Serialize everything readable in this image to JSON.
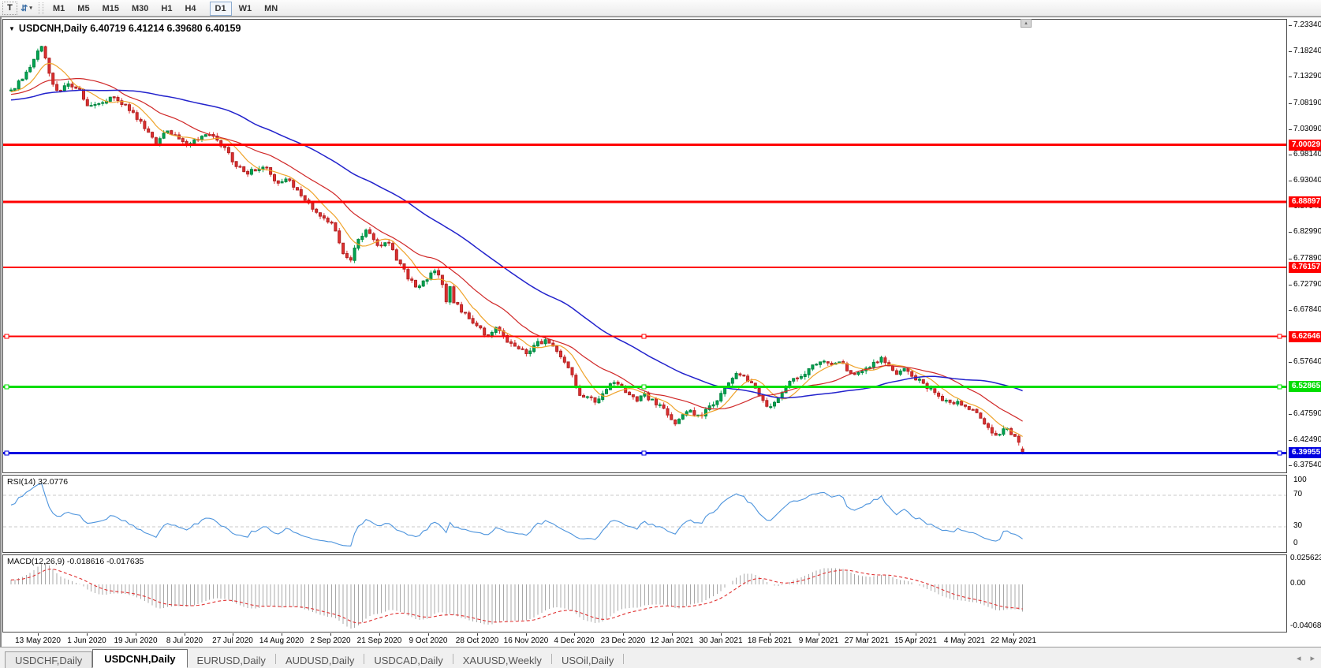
{
  "toolbar": {
    "icons": {
      "text_tool": "T",
      "arrange_tool": "⇵",
      "dropdown_caret": "▾"
    },
    "timeframes": [
      "M1",
      "M5",
      "M15",
      "M30",
      "H1",
      "H4",
      "D1",
      "W1",
      "MN"
    ],
    "active_timeframe": "D1"
  },
  "chart": {
    "title_symbol": "USDCNH,Daily",
    "title_quote": "6.40719 6.41214 6.39680 6.40159",
    "scroll_up_glyph": "▴"
  },
  "rsi": {
    "label": "RSI(14)",
    "value": "32.0776",
    "axis_labels": [
      "100",
      "70",
      "30",
      "0"
    ],
    "levels": [
      70,
      30
    ]
  },
  "macd": {
    "label": "MACD(12,26,9)",
    "values": "-0.018616 -0.017635",
    "axis_labels": [
      "0.025623",
      "0.00",
      "-0.040687"
    ],
    "axis_values": [
      0.025623,
      0,
      -0.040687
    ]
  },
  "tab_bar": {
    "scroll_left_glyph": "◂",
    "scroll_right_glyph": "▸",
    "tabs": [
      {
        "label": "USDCHF,Daily",
        "active": false
      },
      {
        "label": "USDCNH,Daily",
        "active": true
      },
      {
        "label": "EURUSD,Daily",
        "active": false
      },
      {
        "label": "AUDUSD,Daily",
        "active": false
      },
      {
        "label": "USDCAD,Daily",
        "active": false
      },
      {
        "label": "XAUUSD,Weekly",
        "active": false
      },
      {
        "label": "USOil,Daily",
        "active": false
      }
    ]
  },
  "colors": {
    "up_candle": "#00a651",
    "up_candle_border": "#00843f",
    "down_candle": "#df3030",
    "down_candle_border": "#b02424",
    "ma_fast": "#efa32a",
    "ma_mid": "#d02828",
    "ma_slow": "#2222cc",
    "rsi_line": "#4d94dd",
    "level_dashed": "#c9c9c9",
    "macd_histogram": "#a8a8a8",
    "macd_signal": "#e03030",
    "hline_red": "#ff0000",
    "hline_green": "#00dd00",
    "hline_blue": "#0000e0"
  },
  "chart_data": {
    "type": "candlestick",
    "symbol": "USDCNH",
    "timeframe": "Daily",
    "last_candle": {
      "open": 6.40719,
      "high": 6.41214,
      "low": 6.3968,
      "close": 6.40159
    },
    "candle_count": 266,
    "price_axis_ticks": [
      {
        "label": "7.23340",
        "value": 7.2334
      },
      {
        "label": "7.18240",
        "value": 7.1824
      },
      {
        "label": "7.13290",
        "value": 7.1329
      },
      {
        "label": "7.08190",
        "value": 7.0819
      },
      {
        "label": "7.03090",
        "value": 7.0309
      },
      {
        "label": "6.98140",
        "value": 6.9814
      },
      {
        "label": "6.93040",
        "value": 6.9304
      },
      {
        "label": "6.87940",
        "value": 6.8794
      },
      {
        "label": "6.82990",
        "value": 6.8299
      },
      {
        "label": "6.77890",
        "value": 6.7789
      },
      {
        "label": "6.72790",
        "value": 6.7279
      },
      {
        "label": "6.67840",
        "value": 6.6784
      },
      {
        "label": "6.57640",
        "value": 6.5764
      },
      {
        "label": "6.47590",
        "value": 6.4759
      },
      {
        "label": "6.42490",
        "value": 6.4249
      },
      {
        "label": "6.37540",
        "value": 6.3754
      }
    ],
    "horizontal_lines": [
      {
        "label": "7.00029",
        "price": 7.00029,
        "color": "#ff0000",
        "thickness": 3,
        "selected": false
      },
      {
        "label": "6.88897",
        "price": 6.88897,
        "color": "#ff0000",
        "thickness": 3,
        "selected": false
      },
      {
        "label": "6.76157",
        "price": 6.76157,
        "color": "#ff0000",
        "thickness": 2,
        "selected": false
      },
      {
        "label": "6.62646",
        "price": 6.62646,
        "color": "#ff0000",
        "thickness": 2,
        "selected": true
      },
      {
        "label": "6.52865",
        "price": 6.52865,
        "color": "#00dd00",
        "thickness": 3,
        "selected": true
      },
      {
        "label": "6.39955",
        "price": 6.39955,
        "color": "#0000e0",
        "thickness": 3,
        "selected": true
      }
    ],
    "x_axis_dates": [
      "13 May 2020",
      "1 Jun 2020",
      "19 Jun 2020",
      "8 Jul 2020",
      "27 Jul 2020",
      "14 Aug 2020",
      "2 Sep 2020",
      "21 Sep 2020",
      "9 Oct 2020",
      "28 Oct 2020",
      "16 Nov 2020",
      "4 Dec 2020",
      "23 Dec 2020",
      "12 Jan 2021",
      "30 Jan 2021",
      "18 Feb 2021",
      "9 Mar 2021",
      "27 Mar 2021",
      "15 Apr 2021",
      "4 May 2021",
      "22 May 2021"
    ],
    "moving_averages": [
      {
        "name": "fast",
        "period": 8,
        "color": "#efa32a"
      },
      {
        "name": "mid",
        "period": 21,
        "color": "#d02828"
      },
      {
        "name": "slow",
        "period": 55,
        "color": "#2222cc"
      }
    ],
    "price_path_anchors": [
      [
        10,
        7.105
      ],
      [
        22,
        7.125
      ],
      [
        34,
        7.152
      ],
      [
        46,
        7.185
      ],
      [
        50,
        7.198
      ],
      [
        54,
        7.165
      ],
      [
        62,
        7.12
      ],
      [
        70,
        7.102
      ],
      [
        82,
        7.118
      ],
      [
        96,
        7.112
      ],
      [
        108,
        7.072
      ],
      [
        122,
        7.082
      ],
      [
        136,
        7.094
      ],
      [
        152,
        7.078
      ],
      [
        166,
        7.062
      ],
      [
        180,
        7.032
      ],
      [
        194,
        7.004
      ],
      [
        208,
        7.028
      ],
      [
        222,
        7.012
      ],
      [
        236,
        6.998
      ],
      [
        250,
        7.018
      ],
      [
        264,
        7.022
      ],
      [
        278,
        6.998
      ],
      [
        292,
        6.968
      ],
      [
        306,
        6.944
      ],
      [
        320,
        6.95
      ],
      [
        334,
        6.956
      ],
      [
        348,
        6.922
      ],
      [
        362,
        6.936
      ],
      [
        376,
        6.904
      ],
      [
        390,
        6.878
      ],
      [
        404,
        6.862
      ],
      [
        418,
        6.842
      ],
      [
        430,
        6.792
      ],
      [
        440,
        6.768
      ],
      [
        450,
        6.818
      ],
      [
        462,
        6.832
      ],
      [
        476,
        6.804
      ],
      [
        488,
        6.812
      ],
      [
        500,
        6.776
      ],
      [
        512,
        6.744
      ],
      [
        524,
        6.722
      ],
      [
        536,
        6.738
      ],
      [
        548,
        6.756
      ],
      [
        556,
        6.732
      ],
      [
        562,
        6.692
      ],
      [
        565,
        6.752
      ],
      [
        568,
        6.702
      ],
      [
        578,
        6.682
      ],
      [
        590,
        6.662
      ],
      [
        602,
        6.646
      ],
      [
        614,
        6.628
      ],
      [
        626,
        6.642
      ],
      [
        640,
        6.618
      ],
      [
        652,
        6.602
      ],
      [
        664,
        6.594
      ],
      [
        676,
        6.612
      ],
      [
        688,
        6.616
      ],
      [
        700,
        6.602
      ],
      [
        712,
        6.578
      ],
      [
        722,
        6.548
      ],
      [
        732,
        6.506
      ],
      [
        742,
        6.512
      ],
      [
        752,
        6.492
      ],
      [
        762,
        6.52
      ],
      [
        772,
        6.538
      ],
      [
        782,
        6.53
      ],
      [
        792,
        6.512
      ],
      [
        802,
        6.502
      ],
      [
        812,
        6.516
      ],
      [
        822,
        6.502
      ],
      [
        832,
        6.49
      ],
      [
        842,
        6.478
      ],
      [
        852,
        6.457
      ],
      [
        862,
        6.47
      ],
      [
        872,
        6.482
      ],
      [
        882,
        6.468
      ],
      [
        892,
        6.484
      ],
      [
        902,
        6.498
      ],
      [
        912,
        6.518
      ],
      [
        922,
        6.542
      ],
      [
        932,
        6.558
      ],
      [
        942,
        6.546
      ],
      [
        952,
        6.526
      ],
      [
        962,
        6.502
      ],
      [
        972,
        6.49
      ],
      [
        982,
        6.508
      ],
      [
        992,
        6.528
      ],
      [
        1002,
        6.544
      ],
      [
        1012,
        6.55
      ],
      [
        1022,
        6.564
      ],
      [
        1032,
        6.572
      ],
      [
        1042,
        6.578
      ],
      [
        1052,
        6.57
      ],
      [
        1062,
        6.574
      ],
      [
        1072,
        6.56
      ],
      [
        1082,
        6.55
      ],
      [
        1092,
        6.558
      ],
      [
        1102,
        6.574
      ],
      [
        1112,
        6.584
      ],
      [
        1122,
        6.57
      ],
      [
        1132,
        6.556
      ],
      [
        1142,
        6.564
      ],
      [
        1152,
        6.55
      ],
      [
        1162,
        6.542
      ],
      [
        1172,
        6.528
      ],
      [
        1182,
        6.514
      ],
      [
        1192,
        6.5
      ],
      [
        1202,
        6.496
      ],
      [
        1212,
        6.5
      ],
      [
        1222,
        6.49
      ],
      [
        1232,
        6.478
      ],
      [
        1242,
        6.462
      ],
      [
        1252,
        6.444
      ],
      [
        1260,
        6.43
      ],
      [
        1268,
        6.448
      ],
      [
        1276,
        6.442
      ],
      [
        1284,
        6.43
      ],
      [
        1290,
        6.415
      ],
      [
        1294,
        6.4
      ]
    ]
  }
}
